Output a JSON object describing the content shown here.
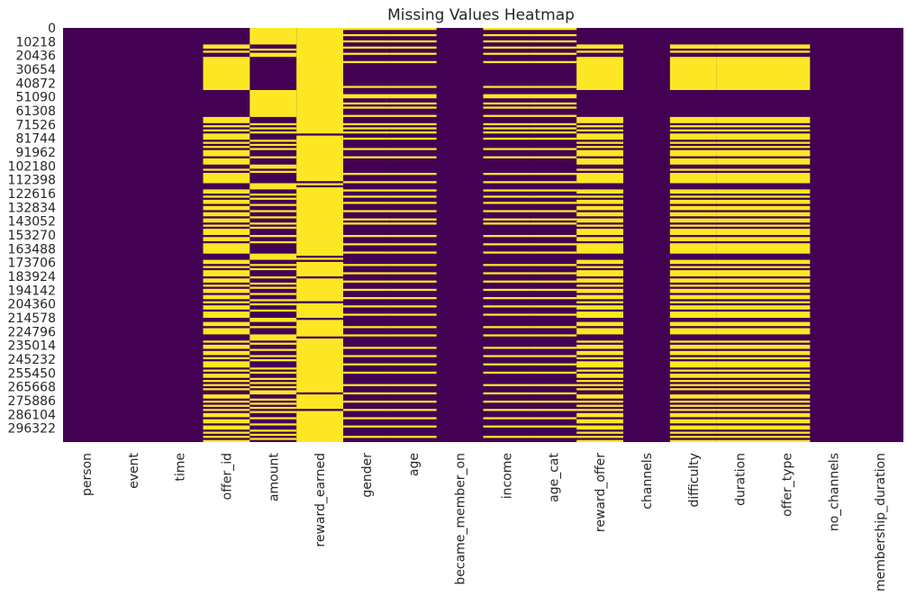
{
  "chart_data": {
    "type": "heatmap",
    "title": "Missing Values Heatmap",
    "xlabel": "",
    "ylabel": "",
    "colorbar": false,
    "colors": {
      "missing": "#fde725",
      "present": "#440154"
    },
    "rows_total": 306534,
    "y_tick_labels": [
      "0",
      "10218",
      "20436",
      "30654",
      "40872",
      "51090",
      "61308",
      "71526",
      "81744",
      "91962",
      "102180",
      "112398",
      "122616",
      "132834",
      "143052",
      "153270",
      "163488",
      "173706",
      "183924",
      "194142",
      "204360",
      "214578",
      "224796",
      "235014",
      "245232",
      "255450",
      "265668",
      "275886",
      "286104",
      "296322"
    ],
    "columns": [
      "person",
      "event",
      "time",
      "offer_id",
      "amount",
      "reward_earned",
      "gender",
      "age",
      "became_member_on",
      "income",
      "age_cat",
      "reward_offer",
      "channels",
      "difficulty",
      "duration",
      "offer_type",
      "no_channels",
      "membership_duration"
    ],
    "missing_pattern": {
      "none": [
        "person",
        "event",
        "time",
        "became_member_on",
        "channels",
        "no_channels",
        "membership_duration"
      ],
      "offer_id": [
        [
          0.04,
          0.05
        ],
        [
          0.055,
          0.06
        ],
        [
          0.07,
          0.15
        ],
        [
          0.215,
          0.23
        ],
        [
          0.235,
          0.24
        ],
        [
          0.245,
          0.25
        ],
        [
          0.255,
          0.27
        ],
        [
          0.275,
          0.28
        ],
        [
          0.285,
          0.29
        ],
        [
          0.295,
          0.31
        ],
        [
          0.315,
          0.33
        ],
        [
          0.34,
          0.345
        ],
        [
          0.35,
          0.375
        ],
        [
          0.39,
          0.4
        ],
        [
          0.405,
          0.41
        ],
        [
          0.415,
          0.425
        ],
        [
          0.43,
          0.44
        ],
        [
          0.445,
          0.455
        ],
        [
          0.46,
          0.47
        ],
        [
          0.475,
          0.48
        ],
        [
          0.485,
          0.5
        ],
        [
          0.505,
          0.515
        ],
        [
          0.52,
          0.545
        ],
        [
          0.56,
          0.57
        ],
        [
          0.575,
          0.58
        ],
        [
          0.585,
          0.6
        ],
        [
          0.605,
          0.615
        ],
        [
          0.62,
          0.625
        ],
        [
          0.63,
          0.64
        ],
        [
          0.645,
          0.655
        ],
        [
          0.66,
          0.665
        ],
        [
          0.67,
          0.68
        ],
        [
          0.685,
          0.7
        ],
        [
          0.71,
          0.72
        ],
        [
          0.725,
          0.74
        ],
        [
          0.755,
          0.76
        ],
        [
          0.765,
          0.775
        ],
        [
          0.78,
          0.79
        ],
        [
          0.795,
          0.8
        ],
        [
          0.805,
          0.82
        ],
        [
          0.825,
          0.83
        ],
        [
          0.835,
          0.845
        ],
        [
          0.85,
          0.855
        ],
        [
          0.86,
          0.865
        ],
        [
          0.87,
          0.875
        ],
        [
          0.885,
          0.895
        ],
        [
          0.9,
          0.905
        ],
        [
          0.91,
          0.915
        ],
        [
          0.92,
          0.925
        ],
        [
          0.93,
          0.94
        ],
        [
          0.945,
          0.955
        ],
        [
          0.96,
          0.97
        ],
        [
          0.975,
          0.98
        ],
        [
          0.985,
          0.99
        ],
        [
          0.995,
          1.0
        ]
      ],
      "amount": [
        [
          0.0,
          0.04
        ],
        [
          0.05,
          0.055
        ],
        [
          0.06,
          0.07
        ],
        [
          0.15,
          0.215
        ],
        [
          0.23,
          0.235
        ],
        [
          0.24,
          0.245
        ],
        [
          0.25,
          0.255
        ],
        [
          0.27,
          0.275
        ],
        [
          0.28,
          0.285
        ],
        [
          0.29,
          0.295
        ],
        [
          0.31,
          0.315
        ],
        [
          0.33,
          0.34
        ],
        [
          0.345,
          0.35
        ],
        [
          0.375,
          0.39
        ],
        [
          0.4,
          0.405
        ],
        [
          0.41,
          0.415
        ],
        [
          0.425,
          0.43
        ],
        [
          0.44,
          0.445
        ],
        [
          0.455,
          0.46
        ],
        [
          0.47,
          0.475
        ],
        [
          0.48,
          0.485
        ],
        [
          0.5,
          0.505
        ],
        [
          0.515,
          0.52
        ],
        [
          0.545,
          0.56
        ],
        [
          0.57,
          0.575
        ],
        [
          0.58,
          0.585
        ],
        [
          0.6,
          0.605
        ],
        [
          0.615,
          0.62
        ],
        [
          0.625,
          0.63
        ],
        [
          0.64,
          0.645
        ],
        [
          0.655,
          0.66
        ],
        [
          0.665,
          0.67
        ],
        [
          0.68,
          0.685
        ],
        [
          0.7,
          0.71
        ],
        [
          0.72,
          0.725
        ],
        [
          0.74,
          0.755
        ],
        [
          0.76,
          0.765
        ],
        [
          0.775,
          0.78
        ],
        [
          0.79,
          0.795
        ],
        [
          0.8,
          0.805
        ],
        [
          0.82,
          0.825
        ],
        [
          0.83,
          0.835
        ],
        [
          0.845,
          0.85
        ],
        [
          0.855,
          0.86
        ],
        [
          0.865,
          0.87
        ],
        [
          0.875,
          0.885
        ],
        [
          0.895,
          0.9
        ],
        [
          0.905,
          0.91
        ],
        [
          0.915,
          0.92
        ],
        [
          0.925,
          0.93
        ],
        [
          0.94,
          0.945
        ],
        [
          0.955,
          0.96
        ],
        [
          0.97,
          0.975
        ],
        [
          0.98,
          0.985
        ],
        [
          0.99,
          0.995
        ]
      ],
      "reward_earned": [
        [
          0.0,
          0.255
        ],
        [
          0.26,
          0.37
        ],
        [
          0.375,
          0.38
        ],
        [
          0.385,
          0.55
        ],
        [
          0.555,
          0.56
        ],
        [
          0.565,
          0.6
        ],
        [
          0.605,
          0.66
        ],
        [
          0.665,
          0.7
        ],
        [
          0.705,
          0.745
        ],
        [
          0.75,
          0.88
        ],
        [
          0.885,
          0.92
        ],
        [
          0.925,
          1.0
        ]
      ],
      "gender": [
        [
          0.0,
          0.005
        ],
        [
          0.015,
          0.02
        ],
        [
          0.03,
          0.035
        ],
        [
          0.045,
          0.05
        ],
        [
          0.06,
          0.065
        ],
        [
          0.08,
          0.085
        ],
        [
          0.14,
          0.145
        ],
        [
          0.16,
          0.17
        ],
        [
          0.18,
          0.185
        ],
        [
          0.19,
          0.195
        ],
        [
          0.21,
          0.215
        ],
        [
          0.23,
          0.235
        ],
        [
          0.24,
          0.245
        ],
        [
          0.25,
          0.255
        ],
        [
          0.265,
          0.27
        ],
        [
          0.29,
          0.295
        ],
        [
          0.31,
          0.315
        ],
        [
          0.35,
          0.355
        ],
        [
          0.37,
          0.375
        ],
        [
          0.39,
          0.395
        ],
        [
          0.405,
          0.41
        ],
        [
          0.42,
          0.425
        ],
        [
          0.44,
          0.445
        ],
        [
          0.46,
          0.465
        ],
        [
          0.47,
          0.475
        ],
        [
          0.5,
          0.505
        ],
        [
          0.52,
          0.525
        ],
        [
          0.54,
          0.545
        ],
        [
          0.57,
          0.575
        ],
        [
          0.59,
          0.595
        ],
        [
          0.61,
          0.615
        ],
        [
          0.63,
          0.635
        ],
        [
          0.65,
          0.655
        ],
        [
          0.67,
          0.675
        ],
        [
          0.69,
          0.695
        ],
        [
          0.72,
          0.725
        ],
        [
          0.74,
          0.745
        ],
        [
          0.77,
          0.775
        ],
        [
          0.79,
          0.795
        ],
        [
          0.81,
          0.815
        ],
        [
          0.83,
          0.835
        ],
        [
          0.86,
          0.865
        ],
        [
          0.88,
          0.885
        ],
        [
          0.9,
          0.905
        ],
        [
          0.92,
          0.925
        ],
        [
          0.94,
          0.945
        ],
        [
          0.96,
          0.965
        ],
        [
          0.985,
          0.99
        ]
      ],
      "age": [
        [
          0.0,
          0.005
        ],
        [
          0.015,
          0.02
        ],
        [
          0.03,
          0.035
        ],
        [
          0.045,
          0.05
        ],
        [
          0.06,
          0.065
        ],
        [
          0.08,
          0.085
        ],
        [
          0.14,
          0.145
        ],
        [
          0.16,
          0.17
        ],
        [
          0.18,
          0.185
        ],
        [
          0.19,
          0.195
        ],
        [
          0.21,
          0.215
        ],
        [
          0.23,
          0.235
        ],
        [
          0.24,
          0.245
        ],
        [
          0.25,
          0.255
        ],
        [
          0.265,
          0.27
        ],
        [
          0.29,
          0.295
        ],
        [
          0.31,
          0.315
        ],
        [
          0.35,
          0.355
        ],
        [
          0.37,
          0.375
        ],
        [
          0.39,
          0.395
        ],
        [
          0.405,
          0.41
        ],
        [
          0.42,
          0.425
        ],
        [
          0.44,
          0.445
        ],
        [
          0.46,
          0.465
        ],
        [
          0.47,
          0.475
        ],
        [
          0.5,
          0.505
        ],
        [
          0.52,
          0.525
        ],
        [
          0.54,
          0.545
        ],
        [
          0.57,
          0.575
        ],
        [
          0.59,
          0.595
        ],
        [
          0.61,
          0.615
        ],
        [
          0.63,
          0.635
        ],
        [
          0.65,
          0.655
        ],
        [
          0.67,
          0.675
        ],
        [
          0.69,
          0.695
        ],
        [
          0.72,
          0.725
        ],
        [
          0.74,
          0.745
        ],
        [
          0.77,
          0.775
        ],
        [
          0.79,
          0.795
        ],
        [
          0.81,
          0.815
        ],
        [
          0.83,
          0.835
        ],
        [
          0.86,
          0.865
        ],
        [
          0.88,
          0.885
        ],
        [
          0.9,
          0.905
        ],
        [
          0.92,
          0.925
        ],
        [
          0.94,
          0.945
        ],
        [
          0.96,
          0.965
        ],
        [
          0.985,
          0.99
        ]
      ],
      "income": [
        [
          0.0,
          0.005
        ],
        [
          0.015,
          0.02
        ],
        [
          0.03,
          0.035
        ],
        [
          0.045,
          0.05
        ],
        [
          0.06,
          0.065
        ],
        [
          0.08,
          0.085
        ],
        [
          0.14,
          0.145
        ],
        [
          0.16,
          0.17
        ],
        [
          0.18,
          0.185
        ],
        [
          0.19,
          0.195
        ],
        [
          0.21,
          0.215
        ],
        [
          0.23,
          0.235
        ],
        [
          0.24,
          0.245
        ],
        [
          0.25,
          0.255
        ],
        [
          0.265,
          0.27
        ],
        [
          0.29,
          0.295
        ],
        [
          0.31,
          0.315
        ],
        [
          0.35,
          0.355
        ],
        [
          0.37,
          0.375
        ],
        [
          0.39,
          0.395
        ],
        [
          0.405,
          0.41
        ],
        [
          0.42,
          0.425
        ],
        [
          0.44,
          0.445
        ],
        [
          0.46,
          0.465
        ],
        [
          0.47,
          0.475
        ],
        [
          0.5,
          0.505
        ],
        [
          0.52,
          0.525
        ],
        [
          0.54,
          0.545
        ],
        [
          0.57,
          0.575
        ],
        [
          0.59,
          0.595
        ],
        [
          0.61,
          0.615
        ],
        [
          0.63,
          0.635
        ],
        [
          0.65,
          0.655
        ],
        [
          0.67,
          0.675
        ],
        [
          0.69,
          0.695
        ],
        [
          0.72,
          0.725
        ],
        [
          0.74,
          0.745
        ],
        [
          0.77,
          0.775
        ],
        [
          0.79,
          0.795
        ],
        [
          0.81,
          0.815
        ],
        [
          0.83,
          0.835
        ],
        [
          0.86,
          0.865
        ],
        [
          0.88,
          0.885
        ],
        [
          0.9,
          0.905
        ],
        [
          0.92,
          0.925
        ],
        [
          0.94,
          0.945
        ],
        [
          0.96,
          0.965
        ],
        [
          0.985,
          0.99
        ]
      ],
      "age_cat": [
        [
          0.0,
          0.005
        ],
        [
          0.015,
          0.02
        ],
        [
          0.03,
          0.035
        ],
        [
          0.045,
          0.05
        ],
        [
          0.06,
          0.065
        ],
        [
          0.08,
          0.085
        ],
        [
          0.14,
          0.145
        ],
        [
          0.16,
          0.17
        ],
        [
          0.18,
          0.185
        ],
        [
          0.19,
          0.195
        ],
        [
          0.21,
          0.215
        ],
        [
          0.23,
          0.235
        ],
        [
          0.24,
          0.245
        ],
        [
          0.25,
          0.255
        ],
        [
          0.265,
          0.27
        ],
        [
          0.29,
          0.295
        ],
        [
          0.31,
          0.315
        ],
        [
          0.35,
          0.355
        ],
        [
          0.37,
          0.375
        ],
        [
          0.39,
          0.395
        ],
        [
          0.405,
          0.41
        ],
        [
          0.42,
          0.425
        ],
        [
          0.44,
          0.445
        ],
        [
          0.46,
          0.465
        ],
        [
          0.47,
          0.475
        ],
        [
          0.5,
          0.505
        ],
        [
          0.52,
          0.525
        ],
        [
          0.54,
          0.545
        ],
        [
          0.57,
          0.575
        ],
        [
          0.59,
          0.595
        ],
        [
          0.61,
          0.615
        ],
        [
          0.63,
          0.635
        ],
        [
          0.65,
          0.655
        ],
        [
          0.67,
          0.675
        ],
        [
          0.69,
          0.695
        ],
        [
          0.72,
          0.725
        ],
        [
          0.74,
          0.745
        ],
        [
          0.77,
          0.775
        ],
        [
          0.79,
          0.795
        ],
        [
          0.81,
          0.815
        ],
        [
          0.83,
          0.835
        ],
        [
          0.86,
          0.865
        ],
        [
          0.88,
          0.885
        ],
        [
          0.9,
          0.905
        ],
        [
          0.92,
          0.925
        ],
        [
          0.94,
          0.945
        ],
        [
          0.96,
          0.965
        ],
        [
          0.985,
          0.99
        ]
      ],
      "reward_offer": "offer_id",
      "difficulty": "offer_id",
      "duration": "offer_id",
      "offer_type": "offer_id"
    }
  }
}
